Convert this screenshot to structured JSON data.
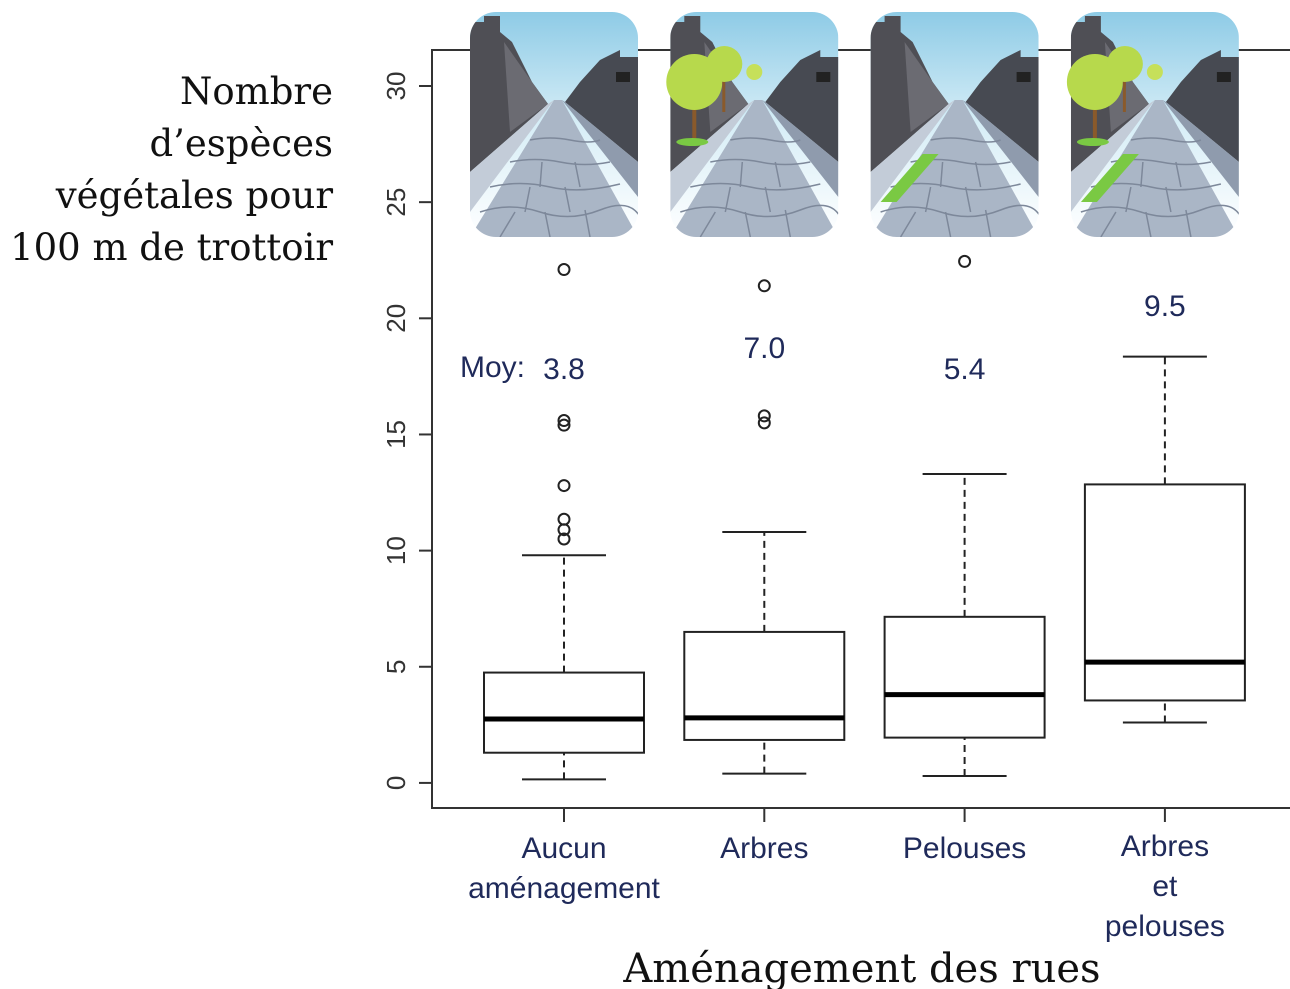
{
  "chart_data": {
    "type": "box",
    "y_label": [
      "Nombre",
      "d’espèces",
      "végétales pour",
      "100 m de trottoir"
    ],
    "x_label": "Aménagement des rues",
    "categories": [
      "Aucun\naménagement",
      "Arbres",
      "Pelouses",
      "Arbres\net\npelouses"
    ],
    "boxes": [
      {
        "whisker_low": 0.15,
        "q1": 1.3,
        "median": 2.75,
        "q3": 4.75,
        "whisker_high": 9.8,
        "outliers": [
          10.5,
          10.9,
          11.35,
          12.8,
          15.4,
          15.6,
          22.1
        ]
      },
      {
        "whisker_low": 0.4,
        "q1": 1.85,
        "median": 2.8,
        "q3": 6.5,
        "whisker_high": 10.8,
        "outliers": [
          15.5,
          15.8,
          21.4
        ]
      },
      {
        "whisker_low": 0.3,
        "q1": 1.95,
        "median": 3.8,
        "q3": 7.15,
        "whisker_high": 13.3,
        "outliers": [
          22.45
        ]
      },
      {
        "whisker_low": 2.6,
        "q1": 3.55,
        "median": 5.2,
        "q3": 12.85,
        "whisker_high": 18.35,
        "outliers": []
      }
    ],
    "means": {
      "label": "Moy:",
      "values": [
        3.8,
        7.0,
        5.4,
        9.5
      ],
      "value_labels": [
        "3.8",
        "7.0",
        "5.4",
        "9.5"
      ]
    },
    "ylim": [
      -1.08,
      31.55
    ],
    "yticks": [
      0,
      5,
      10,
      15,
      20,
      25,
      30
    ]
  }
}
